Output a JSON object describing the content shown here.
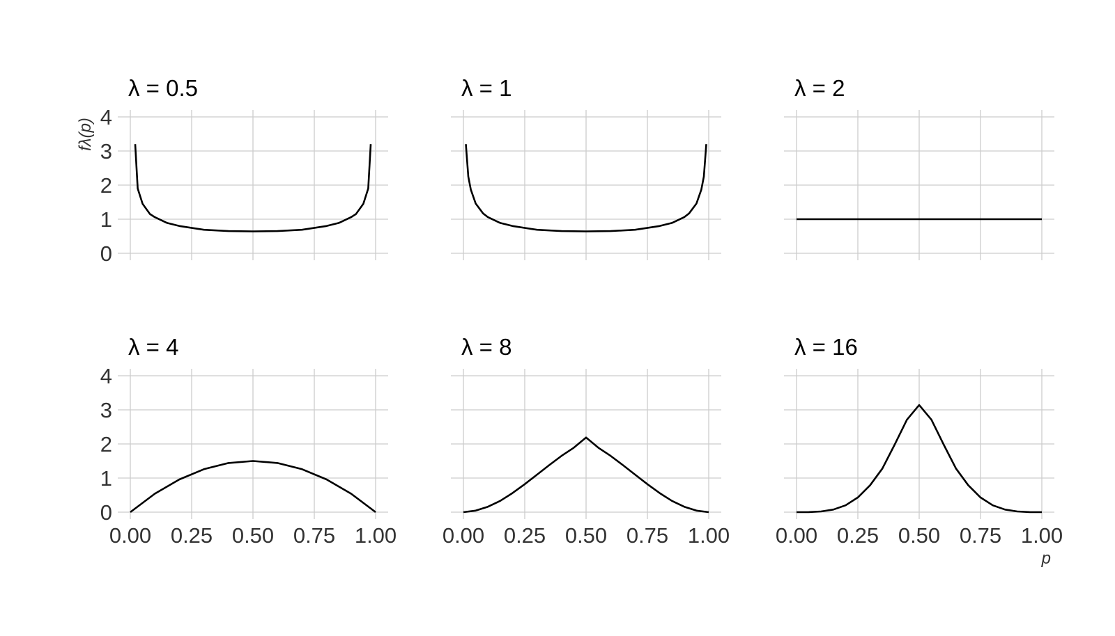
{
  "chart_data": {
    "type": "line",
    "axes": {
      "x_label": "p",
      "y_label": "fλ(p)",
      "x_ticks": [
        "0.00",
        "0.25",
        "0.50",
        "0.75",
        "1.00"
      ],
      "y_ticks": [
        "0",
        "1",
        "2",
        "3",
        "4"
      ],
      "xlim": [
        0,
        1
      ],
      "ylim": [
        0,
        4
      ],
      "grid": true
    },
    "panels": [
      {
        "title": "λ = 0.5",
        "lambda": 0.5,
        "x": [
          0.02,
          0.03,
          0.05,
          0.08,
          0.1,
          0.15,
          0.2,
          0.3,
          0.4,
          0.5,
          0.6,
          0.7,
          0.8,
          0.85,
          0.9,
          0.92,
          0.95,
          0.97,
          0.98
        ],
        "y": [
          3.2,
          1.9,
          1.45,
          1.15,
          1.06,
          0.89,
          0.8,
          0.69,
          0.65,
          0.64,
          0.65,
          0.69,
          0.8,
          0.89,
          1.06,
          1.15,
          1.45,
          1.9,
          3.2
        ]
      },
      {
        "title": "λ = 1",
        "lambda": 1,
        "x": [
          0.01,
          0.02,
          0.03,
          0.05,
          0.08,
          0.1,
          0.15,
          0.2,
          0.3,
          0.4,
          0.5,
          0.6,
          0.7,
          0.8,
          0.85,
          0.9,
          0.92,
          0.95,
          0.97,
          0.98,
          0.99
        ],
        "y": [
          3.2,
          2.25,
          1.87,
          1.46,
          1.17,
          1.06,
          0.89,
          0.8,
          0.69,
          0.65,
          0.64,
          0.65,
          0.69,
          0.8,
          0.89,
          1.06,
          1.17,
          1.46,
          1.87,
          2.25,
          3.2
        ]
      },
      {
        "title": "λ = 2",
        "lambda": 2,
        "x": [
          0,
          1
        ],
        "y": [
          1,
          1
        ]
      },
      {
        "title": "λ = 4",
        "lambda": 4,
        "x": [
          0,
          0.1,
          0.2,
          0.3,
          0.4,
          0.5,
          0.6,
          0.7,
          0.8,
          0.9,
          1
        ],
        "y": [
          0,
          0.54,
          0.96,
          1.26,
          1.44,
          1.5,
          1.44,
          1.26,
          0.96,
          0.54,
          0
        ]
      },
      {
        "title": "λ = 8",
        "lambda": 8,
        "x": [
          0,
          0.05,
          0.1,
          0.15,
          0.2,
          0.25,
          0.3,
          0.35,
          0.4,
          0.45,
          0.5,
          0.55,
          0.6,
          0.65,
          0.7,
          0.75,
          0.8,
          0.85,
          0.9,
          0.95,
          1
        ],
        "y": [
          0,
          0.045,
          0.16,
          0.33,
          0.56,
          0.82,
          1.1,
          1.38,
          1.65,
          1.89,
          2.19,
          1.89,
          1.65,
          1.38,
          1.1,
          0.82,
          0.56,
          0.33,
          0.16,
          0.045,
          0
        ]
      },
      {
        "title": "λ = 16",
        "lambda": 16,
        "x": [
          0,
          0.05,
          0.1,
          0.15,
          0.2,
          0.25,
          0.3,
          0.35,
          0.4,
          0.45,
          0.5,
          0.55,
          0.6,
          0.65,
          0.7,
          0.75,
          0.8,
          0.85,
          0.9,
          0.95,
          1
        ],
        "y": [
          0,
          0.002,
          0.02,
          0.075,
          0.2,
          0.43,
          0.79,
          1.28,
          1.98,
          2.71,
          3.14,
          2.71,
          1.98,
          1.28,
          0.79,
          0.43,
          0.2,
          0.075,
          0.02,
          0.002,
          0
        ]
      }
    ]
  }
}
